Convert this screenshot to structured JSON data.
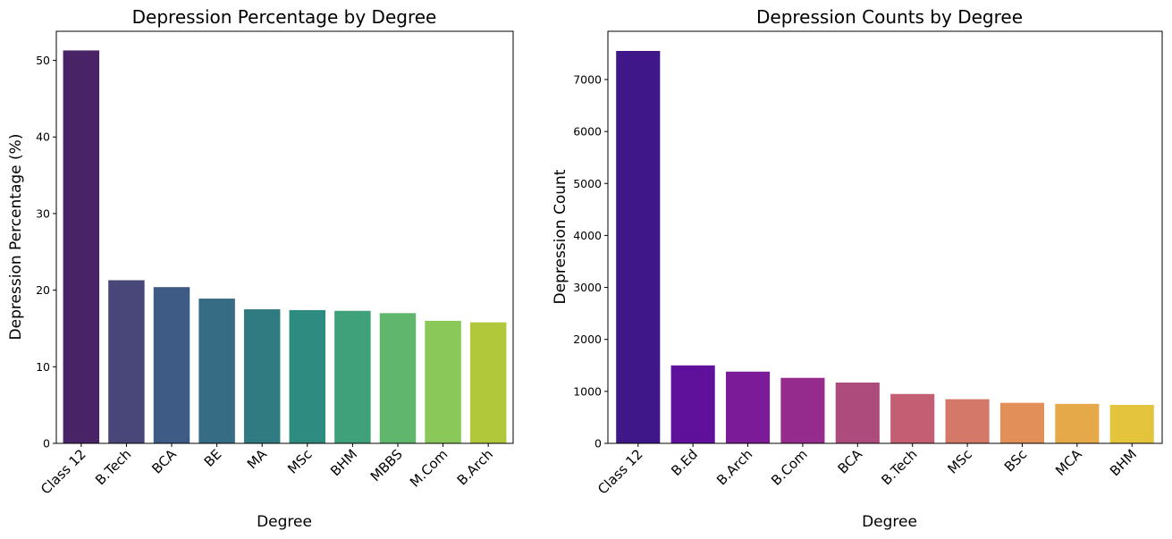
{
  "chart_data": [
    {
      "type": "bar",
      "title": "Depression Percentage by Degree",
      "xlabel": "Degree",
      "ylabel": "Depression Percentage (%)",
      "categories": [
        "Class 12",
        "B.Tech",
        "BCA",
        "BE",
        "MA",
        "MSc",
        "BHM",
        "MBBS",
        "M.Com",
        "B.Arch"
      ],
      "values": [
        51.3,
        21.3,
        20.4,
        18.9,
        17.5,
        17.4,
        17.3,
        17.0,
        16.0,
        15.8
      ],
      "ylim": [
        0,
        53.8
      ],
      "yticks": [
        0,
        10,
        20,
        30,
        40,
        50
      ],
      "colors": [
        "#482466",
        "#49477a",
        "#3e5b86",
        "#366c84",
        "#2f7b81",
        "#2e8b80",
        "#3ea17a",
        "#61b66e",
        "#8ac859",
        "#b0c83a"
      ],
      "grid": false,
      "legend": "none"
    },
    {
      "type": "bar",
      "title": "Depression Counts by Degree",
      "xlabel": "Degree",
      "ylabel": "Depression Count",
      "categories": [
        "Class 12",
        "B.Ed",
        "B.Arch",
        "B.Com",
        "BCA",
        "B.Tech",
        "MSc",
        "BSc",
        "MCA",
        "BHM"
      ],
      "values": [
        7550,
        1500,
        1380,
        1260,
        1170,
        950,
        850,
        780,
        760,
        740
      ],
      "ylim": [
        0,
        7928
      ],
      "yticks": [
        0,
        1000,
        2000,
        3000,
        4000,
        5000,
        6000,
        7000
      ],
      "colors": [
        "#3f1789",
        "#5f119c",
        "#7b1b98",
        "#962b8e",
        "#ad4b7d",
        "#c45e73",
        "#d47869",
        "#e38f59",
        "#e6a94a",
        "#e4c33d"
      ],
      "grid": false,
      "legend": "none"
    }
  ]
}
